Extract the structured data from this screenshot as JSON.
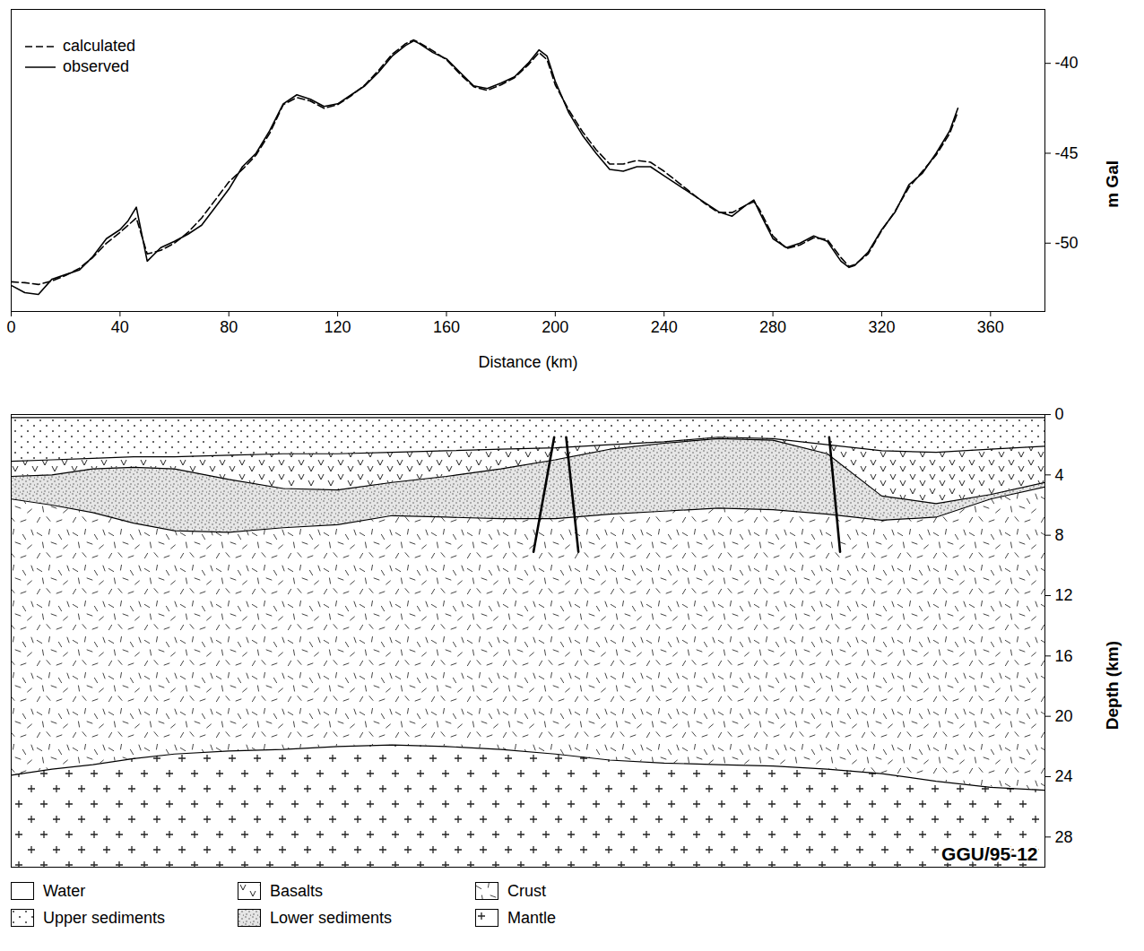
{
  "chart_data": [
    {
      "type": "line",
      "x_label": "Distance (km)",
      "y_label": "m Gal",
      "legend": "top-left",
      "xlim": [
        0,
        380
      ],
      "xticks": [
        0,
        40,
        80,
        120,
        160,
        200,
        240,
        280,
        320,
        360
      ],
      "ylim": [
        -53.8,
        -37
      ],
      "yticks": [
        -40,
        -45,
        -50
      ],
      "x": [
        0,
        5,
        10,
        15,
        20,
        25,
        30,
        35,
        40,
        43,
        46,
        50,
        55,
        60,
        65,
        70,
        75,
        80,
        85,
        90,
        95,
        100,
        105,
        110,
        115,
        120,
        125,
        130,
        135,
        140,
        145,
        148,
        150,
        155,
        160,
        165,
        170,
        175,
        180,
        185,
        190,
        194,
        197,
        200,
        205,
        210,
        215,
        220,
        225,
        230,
        235,
        240,
        245,
        250,
        255,
        260,
        265,
        270,
        273,
        275,
        280,
        285,
        290,
        295,
        300,
        305,
        308,
        310,
        315,
        320,
        325,
        330,
        335,
        340,
        345,
        348
      ],
      "series": [
        {
          "name": "calculated",
          "color": "#000000",
          "line_style": "dashed",
          "values": [
            -52.15,
            -52.2,
            -52.3,
            -52.1,
            -51.8,
            -51.4,
            -50.8,
            -50.0,
            -49.4,
            -49.0,
            -48.6,
            -50.6,
            -50.4,
            -50.0,
            -49.4,
            -48.6,
            -47.6,
            -46.6,
            -45.9,
            -45.1,
            -43.9,
            -42.3,
            -41.9,
            -42.1,
            -42.5,
            -42.3,
            -41.8,
            -41.2,
            -40.4,
            -39.5,
            -38.9,
            -38.7,
            -38.85,
            -39.3,
            -39.8,
            -40.6,
            -41.3,
            -41.5,
            -41.2,
            -40.8,
            -40.1,
            -39.4,
            -39.8,
            -41.2,
            -42.6,
            -43.8,
            -44.8,
            -45.6,
            -45.6,
            -45.4,
            -45.5,
            -46.0,
            -46.6,
            -47.2,
            -47.8,
            -48.3,
            -48.3,
            -47.9,
            -47.7,
            -48.1,
            -49.6,
            -50.3,
            -50.1,
            -49.7,
            -49.8,
            -50.8,
            -51.3,
            -51.2,
            -50.6,
            -49.3,
            -48.2,
            -46.9,
            -46.0,
            -45.1,
            -43.9,
            -42.7
          ]
        },
        {
          "name": "observed",
          "color": "#000000",
          "line_style": "solid",
          "values": [
            -52.35,
            -52.75,
            -52.85,
            -52.0,
            -51.75,
            -51.5,
            -50.75,
            -49.75,
            -49.25,
            -48.75,
            -48.0,
            -51.0,
            -50.25,
            -49.9,
            -49.5,
            -49.0,
            -48.0,
            -47.0,
            -45.75,
            -45.0,
            -43.75,
            -42.25,
            -41.75,
            -42.0,
            -42.4,
            -42.25,
            -41.75,
            -41.25,
            -40.5,
            -39.6,
            -39.0,
            -38.75,
            -38.9,
            -39.4,
            -39.75,
            -40.5,
            -41.25,
            -41.4,
            -41.1,
            -40.75,
            -40.0,
            -39.25,
            -39.6,
            -41.0,
            -42.75,
            -44.0,
            -45.0,
            -45.9,
            -46.0,
            -45.75,
            -45.75,
            -46.25,
            -46.75,
            -47.25,
            -47.75,
            -48.25,
            -48.5,
            -47.9,
            -47.6,
            -48.25,
            -49.75,
            -50.25,
            -50.0,
            -49.6,
            -49.9,
            -51.0,
            -51.35,
            -51.25,
            -50.5,
            -49.25,
            -48.25,
            -46.75,
            -46.1,
            -45.0,
            -43.75,
            -42.5
          ]
        }
      ]
    },
    {
      "type": "area",
      "title": "GGU/95-12",
      "y_label": "Depth (km)",
      "tick_labels": "y",
      "legend": "bottom",
      "xlim": [
        0,
        380
      ],
      "ylim": [
        0,
        30
      ],
      "yticks": [
        0,
        4,
        8,
        12,
        16,
        20,
        24,
        28
      ],
      "x": [
        0,
        15,
        30,
        45,
        60,
        80,
        100,
        120,
        140,
        160,
        180,
        200,
        220,
        240,
        260,
        280,
        300,
        320,
        340,
        360,
        380
      ],
      "series": [
        {
          "name": "Water",
          "color": "#ffffff",
          "values": [
            0,
            0,
            0,
            0,
            0,
            0,
            0,
            0,
            0,
            0,
            0,
            0,
            0,
            0,
            0,
            0,
            0,
            0,
            0,
            0,
            0
          ]
        },
        {
          "name": "Upper sediments",
          "color": "#ffffff",
          "values": [
            0.2,
            0.2,
            0.2,
            0.2,
            0.2,
            0.2,
            0.2,
            0.2,
            0.2,
            0.2,
            0.2,
            0.2,
            0.2,
            0.2,
            0.2,
            0.2,
            0.2,
            0.2,
            0.2,
            0.2,
            0.2
          ]
        },
        {
          "name": "Basalts",
          "color": "#ffffff",
          "values": [
            3.1,
            3.0,
            2.9,
            2.8,
            2.8,
            2.7,
            2.6,
            2.6,
            2.5,
            2.4,
            2.3,
            2.2,
            2.0,
            1.8,
            1.5,
            1.6,
            2.0,
            2.4,
            2.5,
            2.3,
            2.1
          ]
        },
        {
          "name": "Lower sediments",
          "color": "#e6e6e6",
          "values": [
            4.1,
            4.0,
            3.6,
            3.5,
            3.6,
            4.3,
            4.9,
            5.0,
            4.5,
            4.1,
            3.6,
            3.0,
            2.3,
            1.9,
            1.6,
            1.7,
            2.6,
            5.4,
            5.9,
            5.3,
            4.5
          ]
        },
        {
          "name": "Crust",
          "color": "#ffffff",
          "values": [
            5.6,
            6.0,
            6.5,
            7.2,
            7.7,
            7.8,
            7.5,
            7.3,
            6.7,
            6.8,
            6.9,
            6.9,
            6.6,
            6.4,
            6.2,
            6.3,
            6.6,
            7.0,
            6.8,
            5.6,
            4.8
          ]
        },
        {
          "name": "Mantle",
          "color": "#ffffff",
          "values": [
            23.9,
            23.5,
            23.2,
            22.8,
            22.5,
            22.3,
            22.2,
            22.0,
            21.9,
            22.0,
            22.2,
            22.5,
            22.9,
            23.1,
            23.2,
            23.3,
            23.5,
            23.8,
            24.3,
            24.7,
            24.9
          ]
        }
      ],
      "faults": [
        {
          "x": [
            199.6,
            192.0
          ],
          "values": [
            1.5,
            9.1
          ]
        },
        {
          "x": [
            204.0,
            208.5
          ],
          "values": [
            1.5,
            9.1
          ]
        },
        {
          "x": [
            300.7,
            304.7
          ],
          "values": [
            1.5,
            9.1
          ]
        }
      ]
    }
  ]
}
